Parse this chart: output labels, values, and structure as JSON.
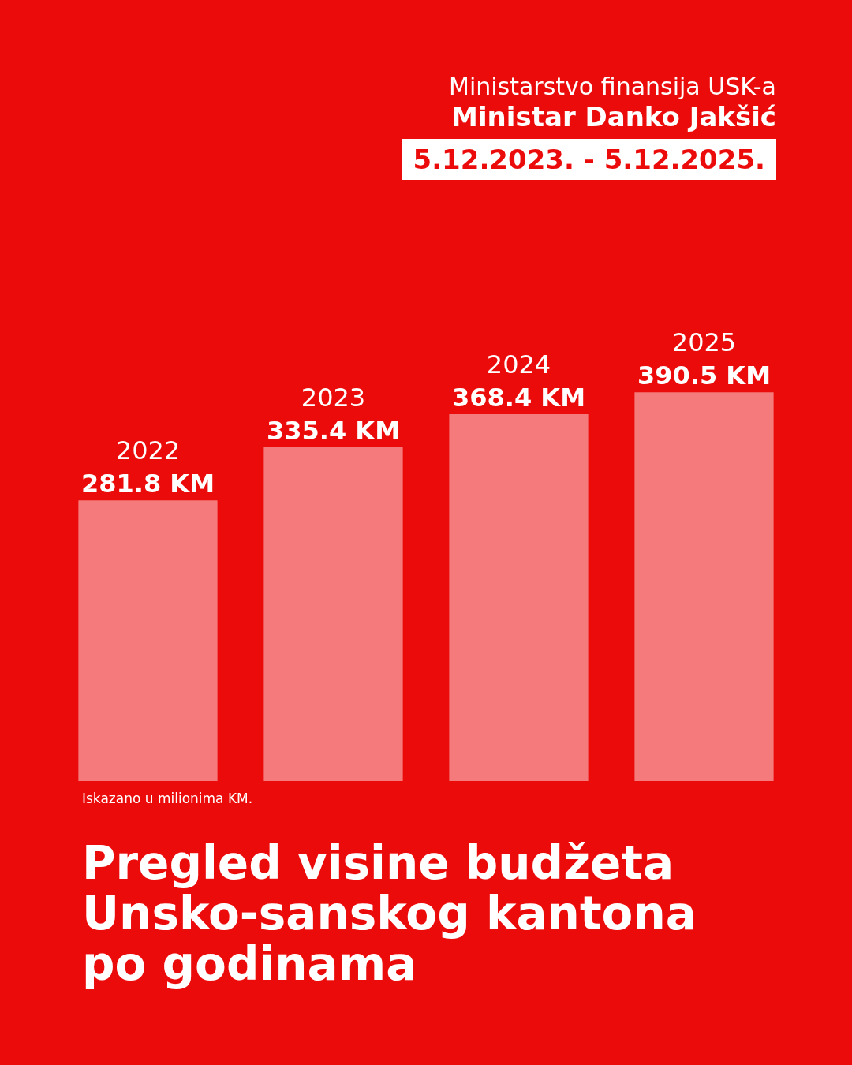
{
  "chart_data": {
    "type": "bar",
    "title": "Pregled visine budžeta Unsko-sanskog kantona po godinama",
    "categories": [
      "2022",
      "2023",
      "2024",
      "2025"
    ],
    "values": [
      281.8,
      335.4,
      368.4,
      390.5
    ],
    "value_labels": [
      "281.8 KM",
      "335.4 KM",
      "368.4 KM",
      "390.5 KM"
    ],
    "color": "#f47a7b",
    "annotations": [
      "Ministarstvo finansija USK-a",
      "Ministar Danko Jakšić",
      "5.12.2023. - 5.12.2025.",
      "Iskazano u milionima KM."
    ]
  }
}
